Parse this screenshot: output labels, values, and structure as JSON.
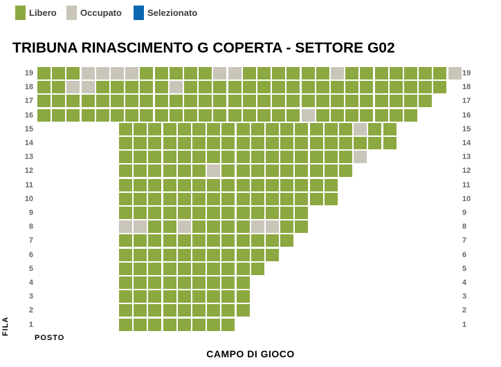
{
  "legend": {
    "items": [
      {
        "label": "Libero",
        "state": "free",
        "color": "#8CA841"
      },
      {
        "label": "Occupato",
        "state": "occupied",
        "color": "#C9C5B9"
      },
      {
        "label": "Selezionato",
        "state": "selected",
        "color": "#0A67B2"
      }
    ]
  },
  "title": "TRIBUNA RINASCIMENTO G COPERTA - SETTORE G02",
  "axis": {
    "row_axis_label": "FILA",
    "seat_axis_label": "POSTO",
    "bottom_label": "CAMPO DI GIOCO"
  },
  "colors": {
    "free": "#8CA841",
    "occupied": "#C9C5B9",
    "selected": "#0A67B2"
  },
  "seatmap": {
    "rows": [
      {
        "fila": "19",
        "block": "full",
        "seats": "GGGOOOOGGGGGOOGGGGGGOGGGGGGGO"
      },
      {
        "fila": "18",
        "block": "full",
        "seats": "GGOOGGGGGOGGGGGGGGGGGGGGGGGG"
      },
      {
        "fila": "17",
        "block": "full",
        "seats": "GGGGGGGGGGGGGGGGGGGGGGGGGGG"
      },
      {
        "fila": "16",
        "block": "full",
        "seats": "GGGGGGGGGGGGGGGGGGOGGGGGGG"
      },
      {
        "fila": "15",
        "block": "inset",
        "seats": "GGGGGGGGGGGGGGGGOGG"
      },
      {
        "fila": "14",
        "block": "inset",
        "seats": "GGGGGGGGGGGGGGGGGGG"
      },
      {
        "fila": "13",
        "block": "inset",
        "seats": "GGGGGGGGGGGGGGGGO"
      },
      {
        "fila": "12",
        "block": "inset",
        "seats": "GGGGGGOGGGGGGGGG"
      },
      {
        "fila": "11",
        "block": "inset",
        "seats": "GGGGGGGGGGGGGGG"
      },
      {
        "fila": "10",
        "block": "inset",
        "seats": "GGGGGGGGGGGGGGG"
      },
      {
        "fila": "9",
        "block": "inset",
        "seats": "GGGGGGGGGGGGG"
      },
      {
        "fila": "8",
        "block": "inset",
        "seats": "OOGGOGGGGOOGG"
      },
      {
        "fila": "7",
        "block": "inset",
        "seats": "GGGGGGGGGGGG"
      },
      {
        "fila": "6",
        "block": "inset",
        "seats": "GGGGGGGGGGG"
      },
      {
        "fila": "5",
        "block": "inset",
        "seats": "GGGGGGGGGG"
      },
      {
        "fila": "4",
        "block": "inset",
        "seats": "GGGGGGGGG"
      },
      {
        "fila": "3",
        "block": "inset",
        "seats": "GGGGGGGGG"
      },
      {
        "fila": "2",
        "block": "inset",
        "seats": "GGGGGGGGG"
      },
      {
        "fila": "1",
        "block": "inset",
        "seats": "GGGGGGGG"
      }
    ]
  }
}
